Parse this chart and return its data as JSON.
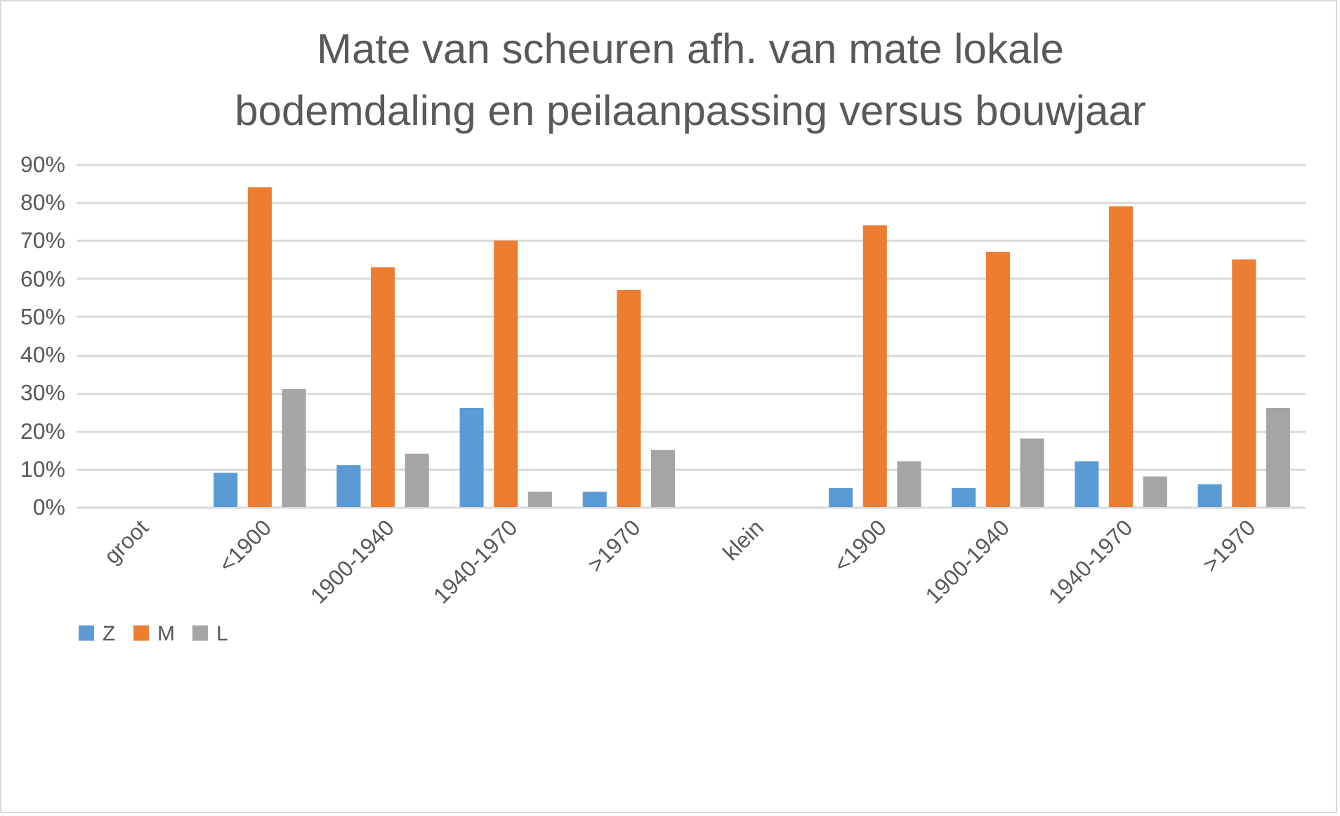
{
  "chart_data": {
    "type": "bar",
    "title": "Mate van scheuren afh. van mate lokale\nbodemdaling en peilaanpassing versus bouwjaar",
    "categories": [
      "groot",
      "<1900",
      "1900-1940",
      "1940-1970",
      ">1970",
      "klein",
      "<1900",
      "1900-1940",
      "1940-1970",
      ">1970"
    ],
    "series": [
      {
        "name": "Z",
        "color": "#5b9bd5",
        "values": [
          null,
          9,
          11,
          26,
          4,
          null,
          5,
          5,
          12,
          6
        ]
      },
      {
        "name": "M",
        "color": "#ed7d31",
        "values": [
          null,
          84,
          63,
          70,
          57,
          null,
          74,
          67,
          79,
          65
        ]
      },
      {
        "name": "L",
        "color": "#a5a5a5",
        "values": [
          null,
          31,
          14,
          4,
          15,
          null,
          12,
          18,
          8,
          26
        ]
      }
    ],
    "ylim": [
      0,
      90
    ],
    "yticks": [
      {
        "value": 0,
        "label": "0%"
      },
      {
        "value": 10,
        "label": "10%"
      },
      {
        "value": 20,
        "label": "20%"
      },
      {
        "value": 30,
        "label": "30%"
      },
      {
        "value": 40,
        "label": "40%"
      },
      {
        "value": 50,
        "label": "50%"
      },
      {
        "value": 60,
        "label": "60%"
      },
      {
        "value": 70,
        "label": "70%"
      },
      {
        "value": 80,
        "label": "80%"
      },
      {
        "value": 90,
        "label": "90%"
      }
    ],
    "grid": "y",
    "legend": "bottom"
  }
}
